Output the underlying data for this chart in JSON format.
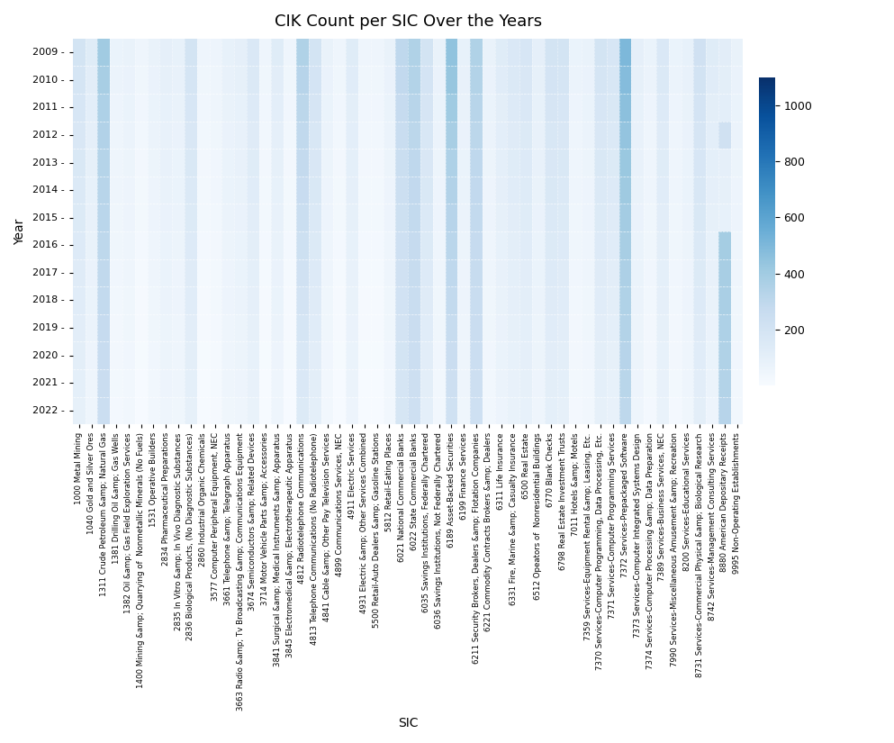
{
  "title": "CIK Count per SIC Over the Years",
  "years": [
    2009,
    2010,
    2011,
    2012,
    2013,
    2014,
    2015,
    2016,
    2017,
    2018,
    2019,
    2020,
    2021,
    2022
  ],
  "sic_labels": [
    "1000 Metal Mining",
    "1040 Gold and Silver Ores",
    "1311 Crude Petroleum &amp; Natural Gas",
    "1381 Drilling Oil &amp; Gas Wells",
    "1382 Oil &amp; Gas Field Exploration Services",
    "1400 Mining &amp; Quarrying of  Nonmetallic Minerals (No Fuels)",
    "1531 Operative Builders",
    "2834 Pharmaceutical Preparations",
    "2835 In Vitro &amp; In Vivo Diagnostic Substances",
    "2836 Biological Products, (No Diagnostic Substances)",
    "2860 Industrial Organic Chemicals",
    "3577 Computer Peripheral Equipment, NEC",
    "3661 Telephone &amp; Telegraph Apparatus",
    "3663 Radio &amp; Tv Broadcasting &amp; Communications Equipment",
    "3674 Semiconductors &amp; Related Devices",
    "3714 Motor Vehicle Parts &amp; Accessories",
    "3841 Surgical &amp; Medical Instruments &amp; Apparatus",
    "3845 Electromedical &amp; Electrotherapeutic Apparatus",
    "4812 Radiotelephone Communications",
    "4813 Telephone Communications (No Radiotelephone)",
    "4841 Cable &amp; Other Pay Television Services",
    "4899 Communications Services, NEC",
    "4911 Electric Services",
    "4931 Electric &amp; Other Services Combined",
    "5500 Retail-Auto Dealers &amp; Gasoline Stations",
    "5812 Retail-Eating Places",
    "6021 National Commercial Banks",
    "6022 State Commercial Banks",
    "6035 Savings Institutions, Federally Chartered",
    "6036 Savings Institutions, Not Federally Chartered",
    "6189 Asset-Backed Securities",
    "6199 Finance Services",
    "6211 Security Brokers, Dealers &amp; Flotation Companies",
    "6221 Commodity Contracts Brokers &amp; Dealers",
    "6311 Life Insurance",
    "6331 Fire, Marine &amp; Casualty Insurance",
    "6500 Real Estate",
    "6512 Opeators of  Nonresidential Buildings",
    "6770 Blank Checks",
    "6798 Real Estate Investment Trusts",
    "7011 Hotels &amp; Motels",
    "7359 Services-Equipment Rental &amp; Leasing, Etc.",
    "7370 Services-Computer Programming, Data Processing, Etc.",
    "7371 Services-Computer Programming Services",
    "7372 Services-Prepackaged Software",
    "7373 Services-Computer Integrated Systems Design",
    "7374 Services-Computer Processing &amp; Data Preparation",
    "7389 Services-Business Services, NEC",
    "7990 Services-Miscellaneous Amusement &amp; Recreation",
    "8200 Services-Educational Services",
    "8731 Services-Commercial Physical &amp; Biological Research",
    "8742 Services-Management Consulting Services",
    "8880 American Depositary Receipts",
    "9995 Non-Operating Establishments"
  ],
  "colormap": "Blues",
  "vmin": 0,
  "vmax": 1100,
  "colorbar_label": "",
  "colorbar_ticks": [
    200,
    400,
    600,
    800,
    1000
  ],
  "xlabel": "SIC",
  "ylabel": "Year",
  "figsize": [
    9.93,
    8.25
  ],
  "dpi": 100,
  "heatmap_data": [
    [
      200,
      130,
      400,
      70,
      80,
      50,
      80,
      100,
      90,
      200,
      50,
      60,
      90,
      100,
      160,
      50,
      130,
      50,
      350,
      200,
      80,
      50,
      130,
      50,
      50,
      80,
      300,
      350,
      200,
      80,
      450,
      90,
      350,
      80,
      130,
      160,
      180,
      100,
      200,
      200,
      70,
      80,
      200,
      180,
      500,
      100,
      70,
      160,
      70,
      90,
      220,
      130,
      120,
      80
    ],
    [
      190,
      120,
      380,
      65,
      75,
      45,
      75,
      95,
      85,
      190,
      45,
      55,
      85,
      95,
      155,
      45,
      120,
      45,
      330,
      195,
      75,
      45,
      125,
      45,
      45,
      75,
      290,
      340,
      195,
      75,
      430,
      85,
      340,
      75,
      125,
      155,
      170,
      95,
      195,
      190,
      65,
      75,
      190,
      175,
      480,
      95,
      65,
      155,
      65,
      85,
      210,
      125,
      115,
      75
    ],
    [
      180,
      110,
      360,
      60,
      70,
      40,
      70,
      90,
      80,
      180,
      40,
      50,
      80,
      90,
      145,
      40,
      110,
      40,
      310,
      185,
      70,
      40,
      115,
      40,
      40,
      70,
      275,
      325,
      185,
      70,
      405,
      80,
      325,
      70,
      115,
      145,
      160,
      90,
      185,
      180,
      60,
      70,
      180,
      165,
      460,
      90,
      60,
      145,
      60,
      80,
      195,
      115,
      108,
      70
    ],
    [
      170,
      100,
      345,
      55,
      65,
      35,
      65,
      85,
      75,
      170,
      35,
      45,
      75,
      85,
      135,
      35,
      100,
      35,
      295,
      175,
      65,
      35,
      110,
      35,
      35,
      65,
      260,
      310,
      175,
      65,
      380,
      75,
      310,
      65,
      110,
      135,
      150,
      85,
      175,
      170,
      55,
      65,
      170,
      155,
      440,
      85,
      55,
      135,
      55,
      75,
      185,
      110,
      220,
      65
    ],
    [
      165,
      95,
      335,
      52,
      62,
      32,
      62,
      82,
      72,
      165,
      32,
      42,
      72,
      82,
      130,
      32,
      95,
      32,
      280,
      170,
      62,
      32,
      105,
      32,
      32,
      62,
      250,
      300,
      170,
      62,
      360,
      72,
      300,
      62,
      105,
      130,
      145,
      82,
      170,
      165,
      52,
      62,
      165,
      148,
      425,
      82,
      52,
      130,
      52,
      72,
      178,
      105,
      100,
      62
    ],
    [
      158,
      90,
      325,
      49,
      59,
      29,
      59,
      79,
      69,
      158,
      29,
      39,
      69,
      79,
      125,
      29,
      90,
      29,
      265,
      165,
      59,
      29,
      100,
      29,
      29,
      59,
      242,
      292,
      165,
      59,
      345,
      69,
      292,
      59,
      100,
      125,
      138,
      79,
      165,
      158,
      49,
      59,
      158,
      142,
      410,
      79,
      49,
      125,
      49,
      69,
      172,
      100,
      95,
      59
    ],
    [
      150,
      85,
      315,
      46,
      56,
      26,
      56,
      76,
      66,
      150,
      26,
      36,
      66,
      76,
      118,
      26,
      85,
      26,
      250,
      158,
      56,
      26,
      95,
      26,
      26,
      56,
      235,
      285,
      158,
      56,
      330,
      66,
      285,
      56,
      95,
      118,
      130,
      76,
      158,
      150,
      46,
      56,
      150,
      135,
      395,
      76,
      46,
      118,
      46,
      66,
      165,
      95,
      90,
      56
    ],
    [
      142,
      80,
      305,
      43,
      53,
      23,
      53,
      73,
      63,
      142,
      23,
      33,
      63,
      73,
      112,
      23,
      80,
      23,
      235,
      150,
      53,
      23,
      90,
      23,
      23,
      53,
      228,
      278,
      150,
      53,
      315,
      63,
      278,
      53,
      90,
      112,
      125,
      73,
      150,
      142,
      43,
      53,
      142,
      128,
      380,
      73,
      43,
      112,
      43,
      63,
      158,
      90,
      390,
      53
    ],
    [
      135,
      75,
      295,
      40,
      50,
      20,
      50,
      70,
      60,
      135,
      20,
      30,
      60,
      70,
      105,
      20,
      75,
      20,
      220,
      142,
      50,
      20,
      85,
      20,
      20,
      50,
      220,
      270,
      142,
      50,
      300,
      60,
      270,
      50,
      85,
      105,
      118,
      70,
      142,
      135,
      40,
      50,
      135,
      120,
      365,
      70,
      40,
      105,
      40,
      60,
      150,
      85,
      380,
      50
    ],
    [
      128,
      70,
      285,
      37,
      47,
      17,
      47,
      67,
      57,
      128,
      17,
      27,
      57,
      67,
      100,
      17,
      70,
      17,
      205,
      135,
      47,
      17,
      80,
      17,
      17,
      47,
      212,
      262,
      135,
      47,
      285,
      57,
      262,
      47,
      80,
      100,
      112,
      67,
      135,
      128,
      37,
      47,
      128,
      112,
      350,
      67,
      37,
      100,
      37,
      57,
      142,
      80,
      370,
      47
    ],
    [
      120,
      65,
      275,
      34,
      44,
      14,
      44,
      64,
      54,
      120,
      14,
      24,
      54,
      64,
      95,
      14,
      65,
      14,
      190,
      128,
      44,
      14,
      75,
      14,
      14,
      44,
      205,
      255,
      128,
      44,
      270,
      54,
      255,
      44,
      75,
      95,
      105,
      64,
      128,
      120,
      34,
      44,
      120,
      105,
      340,
      64,
      34,
      95,
      34,
      54,
      135,
      75,
      360,
      44
    ],
    [
      112,
      60,
      265,
      31,
      41,
      11,
      41,
      61,
      51,
      112,
      11,
      21,
      51,
      61,
      90,
      11,
      60,
      11,
      175,
      120,
      41,
      11,
      70,
      11,
      11,
      41,
      198,
      248,
      120,
      41,
      255,
      51,
      248,
      41,
      70,
      90,
      100,
      61,
      120,
      112,
      31,
      41,
      112,
      98,
      330,
      61,
      31,
      90,
      31,
      51,
      128,
      70,
      350,
      41
    ],
    [
      105,
      55,
      255,
      28,
      38,
      8,
      38,
      58,
      48,
      105,
      8,
      18,
      48,
      58,
      85,
      8,
      55,
      8,
      162,
      112,
      38,
      8,
      65,
      8,
      8,
      38,
      190,
      240,
      112,
      38,
      240,
      48,
      240,
      38,
      65,
      85,
      95,
      58,
      112,
      105,
      28,
      38,
      105,
      90,
      318,
      58,
      28,
      85,
      28,
      48,
      120,
      65,
      340,
      38
    ],
    [
      98,
      50,
      248,
      25,
      35,
      5,
      35,
      55,
      45,
      98,
      5,
      15,
      45,
      55,
      80,
      5,
      50,
      5,
      150,
      105,
      35,
      5,
      60,
      5,
      5,
      35,
      182,
      232,
      105,
      35,
      225,
      45,
      232,
      35,
      60,
      80,
      90,
      55,
      105,
      98,
      25,
      35,
      98,
      82,
      305,
      55,
      25,
      80,
      25,
      45,
      112,
      60,
      330,
      35
    ]
  ]
}
